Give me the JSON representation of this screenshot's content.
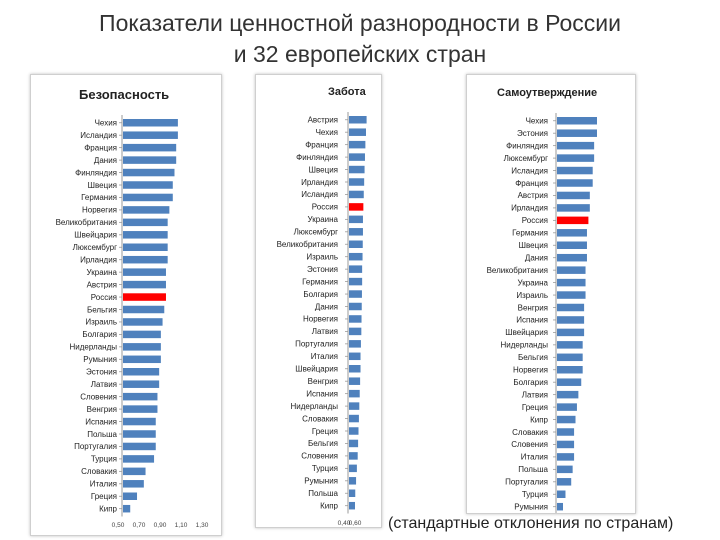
{
  "title": {
    "line1": "Показатели ценностной разнородности в России",
    "line2": "и 32 европейских стран"
  },
  "footnote": "(стандартные отклонения по странам)",
  "colors": {
    "bar": "#4f81bd",
    "highlight": "#ff0000",
    "axis": "#999999"
  },
  "chart_data": [
    {
      "type": "bar",
      "orientation": "horizontal",
      "title": "Безопасность",
      "xlim": [
        0.5,
        1.3
      ],
      "xticks": [
        "0,50",
        "0,70",
        "0,90",
        "1,10",
        "1,30"
      ],
      "highlight": "Россия",
      "categories": [
        "Чехия",
        "Исландия",
        "Франция",
        "Дания",
        "Финляндия",
        "Швеция",
        "Германия",
        "Норвегия",
        "Великобритания",
        "Швейцария",
        "Люксембург",
        "Ирландия",
        "Украина",
        "Австрия",
        "Россия",
        "Бельгия",
        "Израиль",
        "Болгария",
        "Нидерланды",
        "Румыния",
        "Эстония",
        "Латвия",
        "Словения",
        "Венгрия",
        "Испания",
        "Польша",
        "Португалия",
        "Турция",
        "Словакия",
        "Италия",
        "Греция",
        "Кипр"
      ],
      "values": [
        0.92,
        0.92,
        0.91,
        0.91,
        0.9,
        0.89,
        0.89,
        0.87,
        0.86,
        0.86,
        0.86,
        0.86,
        0.85,
        0.85,
        0.85,
        0.84,
        0.83,
        0.82,
        0.82,
        0.82,
        0.81,
        0.81,
        0.8,
        0.8,
        0.79,
        0.79,
        0.79,
        0.78,
        0.73,
        0.72,
        0.68,
        0.64
      ]
    },
    {
      "type": "bar",
      "orientation": "horizontal",
      "title": "Забота",
      "xlim": [
        0.4,
        0.6
      ],
      "xticks": [
        "0,40",
        "0,60"
      ],
      "highlight": "Россия",
      "categories": [
        "Австрия",
        "Чехия",
        "Франция",
        "Финляндия",
        "Швеция",
        "Ирландия",
        "Исландия",
        "Россия",
        "Украина",
        "Люксембург",
        "Великобритания",
        "Израиль",
        "Эстония",
        "Германия",
        "Болгария",
        "Дания",
        "Норвегия",
        "Латвия",
        "Португалия",
        "Италия",
        "Швейцария",
        "Венгрия",
        "Испания",
        "Нидерланды",
        "Словакия",
        "Греция",
        "Бельгия",
        "Словения",
        "Турция",
        "Румыния",
        "Польша",
        "Кипр"
      ],
      "values": [
        0.578,
        0.575,
        0.572,
        0.57,
        0.568,
        0.566,
        0.564,
        0.562,
        0.56,
        0.56,
        0.559,
        0.558,
        0.556,
        0.556,
        0.555,
        0.554,
        0.553,
        0.552,
        0.55,
        0.548,
        0.548,
        0.546,
        0.544,
        0.542,
        0.54,
        0.538,
        0.536,
        0.534,
        0.53,
        0.526,
        0.522,
        0.516
      ]
    },
    {
      "type": "bar",
      "orientation": "horizontal",
      "title": "Самоутверждение",
      "highlight": "Россия",
      "categories": [
        "Чехия",
        "Эстония",
        "Финляндия",
        "Люксембург",
        "Исландия",
        "Франция",
        "Австрия",
        "Ирландия",
        "Россия",
        "Германия",
        "Швеция",
        "Дания",
        "Великобритания",
        "Украина",
        "Израиль",
        "Венгрия",
        "Испания",
        "Швейцария",
        "Нидерланды",
        "Бельгия",
        "Норвегия",
        "Болгария",
        "Латвия",
        "Греция",
        "Кипр",
        "Словакия",
        "Словения",
        "Италия",
        "Польша",
        "Португалия",
        "Турция",
        "Румыния"
      ],
      "values": [
        0.95,
        0.95,
        0.93,
        0.93,
        0.92,
        0.92,
        0.9,
        0.9,
        0.89,
        0.88,
        0.88,
        0.88,
        0.87,
        0.87,
        0.87,
        0.86,
        0.86,
        0.86,
        0.85,
        0.85,
        0.85,
        0.84,
        0.82,
        0.81,
        0.8,
        0.79,
        0.79,
        0.79,
        0.78,
        0.77,
        0.73,
        0.71
      ]
    }
  ]
}
